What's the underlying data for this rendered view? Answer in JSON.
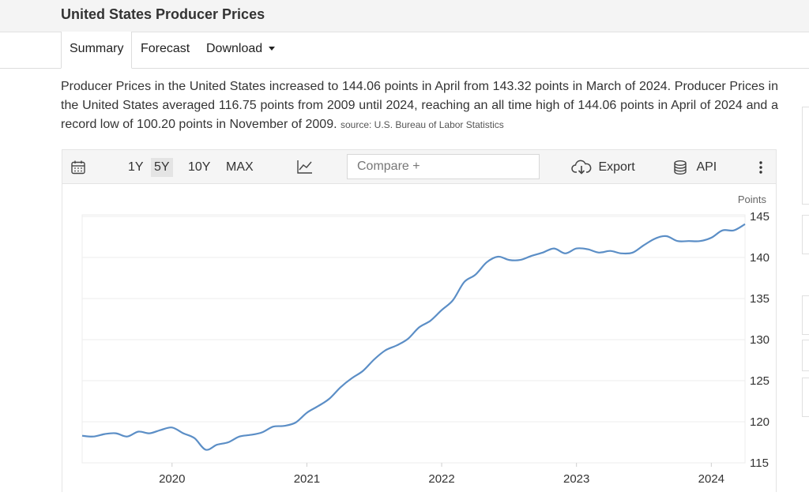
{
  "header": {
    "title": "United States Producer Prices"
  },
  "tabs": [
    {
      "label": "Summary"
    },
    {
      "label": "Forecast"
    },
    {
      "label": "Download"
    }
  ],
  "description": {
    "text": "Producer Prices in the United States increased to 144.06 points in April from 143.32 points in March of 2024. Producer Prices in the United States averaged 116.75 points from 2009 until 2024, reaching an all time high of 144.06 points in April of 2024 and a record low of 100.20 points in November of 2009.",
    "source": "source: U.S. Bureau of Labor Statistics"
  },
  "toolbar": {
    "ranges": [
      "1Y",
      "5Y",
      "10Y",
      "MAX"
    ],
    "selected_range": "5Y",
    "compare_placeholder": "Compare +",
    "export_label": "Export",
    "api_label": "API"
  },
  "icons": [
    "calendar-icon",
    "line-chart-icon",
    "download-cloud-icon",
    "database-icon",
    "more-vertical-icon"
  ],
  "colors": {
    "line": "#5b8ec6",
    "grid": "#ececec"
  },
  "chart_data": {
    "type": "line",
    "title": "",
    "ylabel": "Points",
    "ylim": [
      115,
      145
    ],
    "yticks": [
      115,
      120,
      125,
      130,
      135,
      140,
      145
    ],
    "xlim": [
      "2019-05",
      "2024-04"
    ],
    "xticks": [
      "2020",
      "2021",
      "2022",
      "2023",
      "2024"
    ],
    "grid": true,
    "legend": "none",
    "series": [
      {
        "name": "",
        "x": [
          "2019-05",
          "2019-06",
          "2019-07",
          "2019-08",
          "2019-09",
          "2019-10",
          "2019-11",
          "2019-12",
          "2020-01",
          "2020-02",
          "2020-03",
          "2020-04",
          "2020-05",
          "2020-06",
          "2020-07",
          "2020-08",
          "2020-09",
          "2020-10",
          "2020-11",
          "2020-12",
          "2021-01",
          "2021-02",
          "2021-03",
          "2021-04",
          "2021-05",
          "2021-06",
          "2021-07",
          "2021-08",
          "2021-09",
          "2021-10",
          "2021-11",
          "2021-12",
          "2022-01",
          "2022-02",
          "2022-03",
          "2022-04",
          "2022-05",
          "2022-06",
          "2022-07",
          "2022-08",
          "2022-09",
          "2022-10",
          "2022-11",
          "2022-12",
          "2023-01",
          "2023-02",
          "2023-03",
          "2023-04",
          "2023-05",
          "2023-06",
          "2023-07",
          "2023-08",
          "2023-09",
          "2023-10",
          "2023-11",
          "2023-12",
          "2024-01",
          "2024-02",
          "2024-03",
          "2024-04"
        ],
        "y": [
          118.3,
          118.2,
          118.5,
          118.6,
          118.2,
          118.8,
          118.6,
          119.0,
          119.3,
          118.6,
          118.0,
          116.6,
          117.2,
          117.5,
          118.2,
          118.4,
          118.7,
          119.4,
          119.5,
          119.9,
          121.1,
          121.9,
          122.8,
          124.2,
          125.3,
          126.2,
          127.6,
          128.7,
          129.3,
          130.1,
          131.5,
          132.3,
          133.6,
          134.8,
          137.0,
          137.9,
          139.4,
          140.1,
          139.7,
          139.7,
          140.2,
          140.6,
          141.1,
          140.5,
          141.1,
          141.0,
          140.6,
          140.8,
          140.5,
          140.6,
          141.5,
          142.3,
          142.6,
          142.0,
          142.0,
          142.0,
          142.4,
          143.3,
          143.3,
          144.06
        ]
      }
    ]
  }
}
